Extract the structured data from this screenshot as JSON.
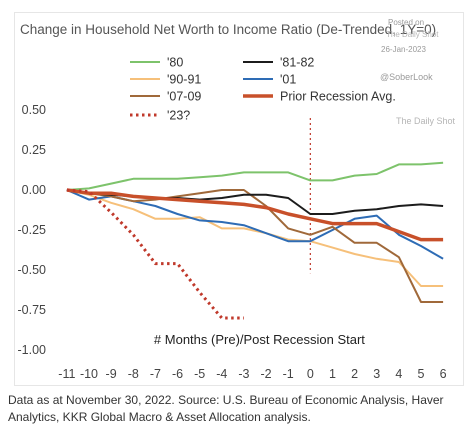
{
  "chart_data": {
    "type": "line",
    "title": "Change in Household Net Worth to Income Ratio (De-Trended, 1Y=0)",
    "xlabel": "# Months (Pre)/Post Recession Start",
    "ylabel": "",
    "x": [
      -11,
      -10,
      -9,
      -8,
      -7,
      -6,
      -5,
      -4,
      -3,
      -2,
      -1,
      0,
      1,
      2,
      3,
      4,
      5,
      6
    ],
    "x_tick_labels": [
      "-11",
      "-10",
      "-9",
      "-8",
      "-7",
      "-6",
      "-5",
      "-4",
      "-3",
      "-2",
      "-1",
      "0",
      "1",
      "2",
      "3",
      "4",
      "5",
      "6"
    ],
    "xlim": [
      -11.4,
      6.4
    ],
    "ylim": [
      -1.0,
      0.5
    ],
    "y_ticks": [
      0.5,
      0.25,
      0.0,
      -0.25,
      -0.5,
      -0.75,
      -1.0
    ],
    "y_tick_labels": [
      "0.50",
      "0.25",
      "0.00",
      "-0.25",
      "-0.50",
      "-0.75",
      "-1.00"
    ],
    "recession_start_marker_x": 0,
    "legend_position": "top",
    "grid": false,
    "series": [
      {
        "name": "'80",
        "color": "#7dc36b",
        "width": 2,
        "dash": "",
        "values": [
          0,
          0.01,
          0.04,
          0.07,
          0.07,
          0.07,
          0.08,
          0.09,
          0.11,
          0.11,
          0.11,
          0.06,
          0.06,
          0.09,
          0.1,
          0.16,
          0.16,
          0.17
        ]
      },
      {
        "name": "'81-82",
        "color": "#1c1c1c",
        "width": 2,
        "dash": "",
        "values": [
          0,
          -0.02,
          -0.03,
          -0.04,
          -0.05,
          -0.05,
          -0.06,
          -0.05,
          -0.03,
          -0.03,
          -0.05,
          -0.15,
          -0.15,
          -0.13,
          -0.12,
          -0.1,
          -0.09,
          -0.1
        ]
      },
      {
        "name": "'90-91",
        "color": "#f6c07a",
        "width": 2,
        "dash": "",
        "values": [
          0,
          -0.03,
          -0.08,
          -0.12,
          -0.18,
          -0.18,
          -0.17,
          -0.24,
          -0.24,
          -0.27,
          -0.31,
          -0.32,
          -0.36,
          -0.4,
          -0.43,
          -0.45,
          -0.6,
          -0.6
        ]
      },
      {
        "name": "'01",
        "color": "#2e6cb5",
        "width": 2,
        "dash": "",
        "values": [
          0,
          -0.06,
          -0.04,
          -0.07,
          -0.1,
          -0.15,
          -0.19,
          -0.2,
          -0.22,
          -0.27,
          -0.32,
          -0.32,
          -0.25,
          -0.18,
          -0.16,
          -0.28,
          -0.35,
          -0.43
        ]
      },
      {
        "name": "'07-09",
        "color": "#a0693a",
        "width": 2,
        "dash": "",
        "values": [
          0,
          -0.02,
          -0.04,
          -0.07,
          -0.06,
          -0.04,
          -0.02,
          0.0,
          0.0,
          -0.1,
          -0.24,
          -0.28,
          -0.23,
          -0.33,
          -0.33,
          -0.42,
          -0.7,
          -0.7
        ]
      },
      {
        "name": "Prior Recession Avg.",
        "color": "#c8502a",
        "width": 3.5,
        "dash": "",
        "values": [
          0,
          -0.02,
          -0.02,
          -0.04,
          -0.05,
          -0.06,
          -0.07,
          -0.08,
          -0.09,
          -0.11,
          -0.15,
          -0.18,
          -0.21,
          -0.21,
          -0.21,
          -0.26,
          -0.31,
          -0.31
        ]
      },
      {
        "name": "'23?",
        "color": "#c0392b",
        "width": 3,
        "dash": "2.5,3.5",
        "values": [
          0,
          -0.01,
          -0.14,
          -0.28,
          -0.46,
          -0.46,
          -0.64,
          -0.8,
          -0.8,
          null,
          null,
          null,
          null,
          null,
          null,
          null,
          null,
          null
        ]
      }
    ],
    "legend_order": [
      "'80",
      "'81-82",
      "'90-91",
      "'01",
      "'07-09",
      "Prior Recession Avg.",
      "'23?"
    ]
  },
  "watermark": {
    "posted_on": "Posted on",
    "site": "The Daily Shot",
    "date": "26-Jan-2023",
    "handle": "@SoberLook"
  },
  "footer": {
    "source": "Data as at November 30, 2022. Source: U.S. Bureau of Economic Analysis, Haver Analytics, KKR Global Macro & Asset Allocation analysis."
  }
}
